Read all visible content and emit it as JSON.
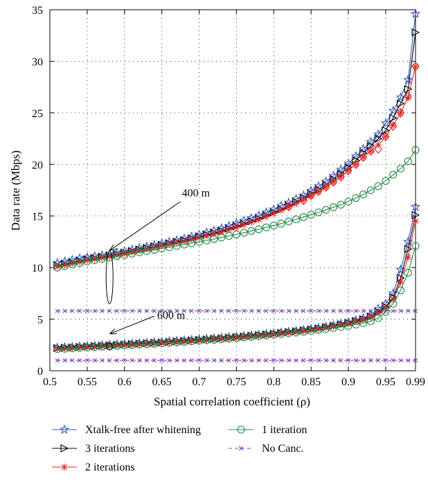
{
  "chart_data": {
    "type": "line",
    "xlabel": "Spatial correlation coefficient (ρ)",
    "ylabel": "Data rate (Mbps)",
    "xlim": [
      0.5,
      0.99
    ],
    "ylim": [
      0,
      35
    ],
    "x_ticks": [
      "0.5",
      "0.55",
      "0.6",
      "0.65",
      "0.7",
      "0.75",
      "0.8",
      "0.85",
      "0.9",
      "0.95",
      "0.99"
    ],
    "y_ticks": [
      "0",
      "5",
      "10",
      "15",
      "20",
      "25",
      "30",
      "35"
    ],
    "grid": "dotted",
    "legend_position": "below",
    "annotations": [
      {
        "text": "400 m",
        "group": "400m"
      },
      {
        "text": "600 m",
        "group": "600m"
      }
    ],
    "x": [
      0.51,
      0.52,
      0.53,
      0.54,
      0.55,
      0.56,
      0.57,
      0.58,
      0.59,
      0.6,
      0.61,
      0.62,
      0.63,
      0.64,
      0.65,
      0.66,
      0.67,
      0.68,
      0.69,
      0.7,
      0.71,
      0.72,
      0.73,
      0.74,
      0.75,
      0.76,
      0.77,
      0.78,
      0.79,
      0.8,
      0.81,
      0.82,
      0.83,
      0.84,
      0.85,
      0.86,
      0.87,
      0.88,
      0.89,
      0.9,
      0.91,
      0.92,
      0.93,
      0.94,
      0.95,
      0.96,
      0.97,
      0.98,
      0.99
    ],
    "series": [
      {
        "name": "Xtalk-free after whitening",
        "group": "400m",
        "marker": "star",
        "color": "#3355bb",
        "values": [
          10.45,
          10.6,
          10.75,
          10.9,
          11.0,
          11.1,
          11.2,
          11.32,
          11.45,
          11.6,
          11.75,
          11.9,
          12.05,
          12.2,
          12.35,
          12.5,
          12.66,
          12.82,
          13.0,
          13.2,
          13.4,
          13.6,
          13.8,
          14.05,
          14.3,
          14.55,
          14.8,
          15.05,
          15.35,
          15.65,
          16.0,
          16.3,
          16.65,
          17.0,
          17.45,
          17.9,
          18.35,
          18.9,
          19.5,
          20.1,
          20.8,
          21.5,
          22.2,
          22.9,
          24.0,
          25.2,
          26.5,
          28.2,
          34.6
        ]
      },
      {
        "name": "3 iterations",
        "group": "400m",
        "marker": "triangle-right",
        "color": "#000000",
        "values": [
          10.2,
          10.35,
          10.5,
          10.65,
          10.8,
          10.92,
          11.05,
          11.18,
          11.3,
          11.45,
          11.6,
          11.75,
          11.9,
          12.05,
          12.2,
          12.35,
          12.5,
          12.65,
          12.82,
          13.0,
          13.18,
          13.35,
          13.55,
          13.78,
          14.0,
          14.25,
          14.5,
          14.75,
          15.05,
          15.35,
          15.65,
          16.0,
          16.35,
          16.75,
          17.15,
          17.55,
          18.0,
          18.55,
          19.1,
          19.7,
          20.4,
          21.1,
          21.8,
          22.5,
          23.3,
          24.5,
          25.9,
          27.3,
          32.8
        ]
      },
      {
        "name": "2 iterations",
        "group": "400m",
        "marker": "asterisk",
        "color": "#dd2222",
        "values": [
          10.1,
          10.25,
          10.4,
          10.55,
          10.7,
          10.82,
          10.95,
          11.08,
          11.2,
          11.35,
          11.5,
          11.65,
          11.8,
          11.95,
          12.1,
          12.25,
          12.4,
          12.55,
          12.72,
          12.9,
          13.08,
          13.25,
          13.45,
          13.68,
          13.9,
          14.15,
          14.4,
          14.65,
          14.95,
          15.25,
          15.55,
          15.9,
          16.2,
          16.55,
          16.95,
          17.35,
          17.8,
          18.3,
          18.8,
          19.4,
          20.0,
          20.7,
          21.3,
          21.9,
          22.7,
          23.8,
          25.0,
          26.5,
          29.5
        ]
      },
      {
        "name": "2 iterations (diamond)",
        "group": "400m",
        "marker": "diamond",
        "color": "#dd2222",
        "values": [
          null,
          null,
          null,
          null,
          null,
          null,
          null,
          null,
          null,
          null,
          null,
          null,
          null,
          null,
          null,
          null,
          null,
          null,
          null,
          null,
          null,
          null,
          null,
          null,
          null,
          null,
          null,
          null,
          null,
          null,
          null,
          15.9,
          null,
          16.5,
          17.0,
          17.4,
          17.8,
          18.3,
          18.8,
          19.4,
          20.0,
          20.7,
          21.3,
          21.5,
          22.7,
          23.7,
          25.0,
          26.6,
          29.5
        ]
      },
      {
        "name": "1 iteration",
        "group": "400m",
        "marker": "circle",
        "color": "#228844",
        "values": [
          10.0,
          10.15,
          10.3,
          10.45,
          10.6,
          10.72,
          10.85,
          10.97,
          11.1,
          11.22,
          11.35,
          11.48,
          11.6,
          11.72,
          11.85,
          11.98,
          12.1,
          12.23,
          12.36,
          12.5,
          12.63,
          12.77,
          12.92,
          13.07,
          13.22,
          13.38,
          13.55,
          13.72,
          13.9,
          14.08,
          14.27,
          14.47,
          14.68,
          14.9,
          15.12,
          15.35,
          15.6,
          15.85,
          16.1,
          16.4,
          16.75,
          17.1,
          17.5,
          17.9,
          18.4,
          19.0,
          19.6,
          20.3,
          21.4
        ]
      },
      {
        "name": "No Canc.",
        "group": "400m",
        "marker": "x",
        "color": "#7744bb",
        "values": [
          5.8,
          5.8,
          5.8,
          5.8,
          5.8,
          5.8,
          5.8,
          5.8,
          5.8,
          5.8,
          5.8,
          5.8,
          5.8,
          5.8,
          5.8,
          5.8,
          5.8,
          5.8,
          5.8,
          5.8,
          5.8,
          5.8,
          5.8,
          5.8,
          5.8,
          5.8,
          5.8,
          5.8,
          5.8,
          5.8,
          5.8,
          5.8,
          5.8,
          5.8,
          5.8,
          5.8,
          5.8,
          5.8,
          5.8,
          5.8,
          5.8,
          5.8,
          5.8,
          5.8,
          5.8,
          5.8,
          5.8,
          5.8,
          5.8
        ]
      },
      {
        "name": "Xtalk-free after whitening",
        "group": "600m",
        "marker": "star",
        "color": "#3355bb",
        "values": [
          2.25,
          2.28,
          2.32,
          2.36,
          2.4,
          2.44,
          2.48,
          2.52,
          2.56,
          2.6,
          2.64,
          2.68,
          2.72,
          2.76,
          2.8,
          2.85,
          2.9,
          2.95,
          3.0,
          3.05,
          3.1,
          3.15,
          3.2,
          3.26,
          3.32,
          3.38,
          3.44,
          3.5,
          3.57,
          3.64,
          3.72,
          3.8,
          3.88,
          3.97,
          4.06,
          4.16,
          4.28,
          4.4,
          4.55,
          4.7,
          4.9,
          5.1,
          5.4,
          6.0,
          6.5,
          7.5,
          9.8,
          12.5,
          15.9
        ]
      },
      {
        "name": "3 iterations",
        "group": "600m",
        "marker": "triangle-right",
        "color": "#000000",
        "values": [
          2.2,
          2.23,
          2.27,
          2.31,
          2.35,
          2.39,
          2.43,
          2.47,
          2.51,
          2.55,
          2.59,
          2.63,
          2.67,
          2.71,
          2.75,
          2.8,
          2.85,
          2.9,
          2.95,
          3.0,
          3.05,
          3.1,
          3.15,
          3.21,
          3.27,
          3.33,
          3.39,
          3.45,
          3.52,
          3.59,
          3.67,
          3.75,
          3.83,
          3.92,
          4.01,
          4.11,
          4.23,
          4.35,
          4.5,
          4.64,
          4.83,
          5.0,
          5.25,
          5.7,
          6.2,
          7.1,
          9.0,
          11.8,
          15.1
        ]
      },
      {
        "name": "2 iterations",
        "group": "600m",
        "marker": "asterisk",
        "color": "#dd2222",
        "values": [
          2.15,
          2.18,
          2.22,
          2.26,
          2.3,
          2.34,
          2.38,
          2.42,
          2.46,
          2.5,
          2.54,
          2.58,
          2.62,
          2.66,
          2.7,
          2.75,
          2.8,
          2.85,
          2.9,
          2.95,
          3.0,
          3.05,
          3.1,
          3.16,
          3.22,
          3.28,
          3.34,
          3.4,
          3.47,
          3.54,
          3.62,
          3.7,
          3.78,
          3.87,
          3.96,
          4.06,
          4.18,
          4.3,
          4.45,
          4.59,
          4.78,
          4.95,
          5.2,
          5.6,
          6.1,
          6.9,
          8.6,
          11.0,
          14.5
        ]
      },
      {
        "name": "1 iteration",
        "group": "600m",
        "marker": "circle",
        "color": "#228844",
        "values": [
          2.1,
          2.13,
          2.17,
          2.21,
          2.25,
          2.29,
          2.33,
          2.37,
          2.41,
          2.45,
          2.49,
          2.53,
          2.57,
          2.61,
          2.65,
          2.7,
          2.75,
          2.8,
          2.85,
          2.9,
          2.95,
          3.0,
          3.05,
          3.11,
          3.17,
          3.23,
          3.29,
          3.35,
          3.42,
          3.49,
          3.56,
          3.63,
          3.7,
          3.78,
          3.86,
          3.95,
          4.05,
          4.15,
          4.25,
          4.35,
          4.48,
          4.62,
          4.8,
          5.1,
          5.7,
          6.5,
          7.8,
          9.5,
          12.1
        ]
      },
      {
        "name": "No Canc.",
        "group": "600m",
        "marker": "x",
        "color": "#7744bb",
        "values": [
          1.0,
          1.0,
          1.0,
          1.0,
          1.0,
          1.0,
          1.0,
          1.0,
          1.0,
          1.0,
          1.0,
          1.0,
          1.0,
          1.0,
          1.0,
          1.0,
          1.0,
          1.0,
          1.0,
          1.0,
          1.0,
          1.0,
          1.0,
          1.0,
          1.0,
          1.0,
          1.0,
          1.0,
          1.0,
          1.0,
          1.0,
          1.0,
          1.0,
          1.0,
          1.0,
          1.0,
          1.0,
          1.0,
          1.0,
          1.0,
          1.0,
          1.0,
          1.0,
          1.0,
          1.0,
          1.0,
          1.0,
          1.0,
          1.0
        ]
      }
    ],
    "legend": [
      {
        "label": "Xtalk-free after whitening",
        "marker": "star",
        "color": "#3355bb"
      },
      {
        "label": "1 iteration",
        "marker": "circle",
        "color": "#228844"
      },
      {
        "label": "3 iterations",
        "marker": "triangle-right",
        "color": "#000000"
      },
      {
        "label": "No Canc.",
        "marker": "x",
        "color": "#7744bb",
        "dash": true
      },
      {
        "label": "2 iterations",
        "marker": "asterisk",
        "color": "#dd2222"
      }
    ]
  }
}
